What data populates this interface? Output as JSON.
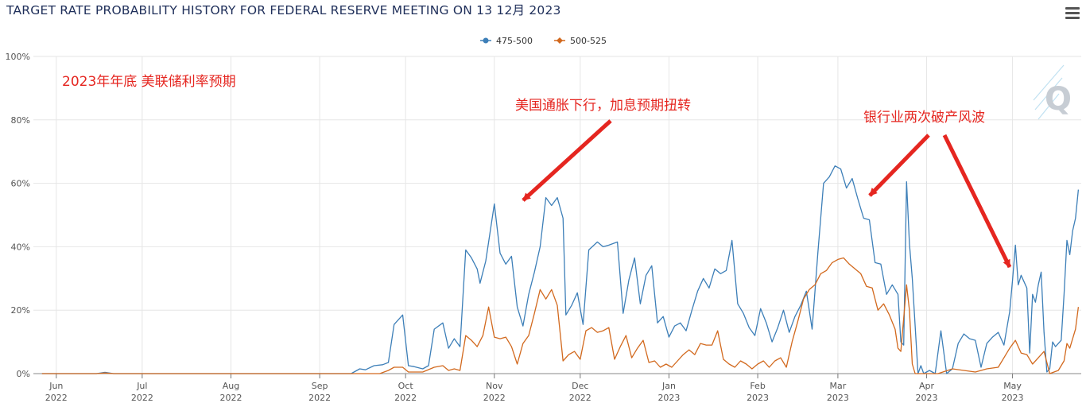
{
  "title": "TARGET RATE PROBABILITY HISTORY FOR FEDERAL RESERVE MEETING ON 13 12月 2023",
  "menu_icon": "hamburger-menu-icon",
  "watermark_icon": "quikstrike-q-logo-icon",
  "colors": {
    "series_475_500": "#3d7fb8",
    "series_500_525": "#d2691e",
    "annotation": "#e52620",
    "grid": "#e6e6e6"
  },
  "chart_data": {
    "type": "line",
    "title": "TARGET RATE PROBABILITY HISTORY FOR FEDERAL RESERVE MEETING ON 13 12月 2023",
    "xlabel": "",
    "ylabel": "",
    "ylim": [
      0,
      100
    ],
    "yticks": [
      "0%",
      "20%",
      "40%",
      "60%",
      "80%",
      "100%"
    ],
    "yticks_values": [
      0,
      20,
      40,
      60,
      80,
      100
    ],
    "xlim": [
      "2022-05-24",
      "2023-05-25"
    ],
    "xticks": [
      {
        "date": "2022-06-01",
        "month": "Jun",
        "year": "2022"
      },
      {
        "date": "2022-07-01",
        "month": "Jul",
        "year": "2022"
      },
      {
        "date": "2022-08-01",
        "month": "Aug",
        "year": "2022"
      },
      {
        "date": "2022-09-01",
        "month": "Sep",
        "year": "2022"
      },
      {
        "date": "2022-10-01",
        "month": "Oct",
        "year": "2022"
      },
      {
        "date": "2022-11-01",
        "month": "Nov",
        "year": "2022"
      },
      {
        "date": "2022-12-01",
        "month": "Dec",
        "year": "2022"
      },
      {
        "date": "2023-01-01",
        "month": "Jan",
        "year": "2023"
      },
      {
        "date": "2023-02-01",
        "month": "Feb",
        "year": "2023"
      },
      {
        "date": "2023-03-01",
        "month": "Mar",
        "year": "2023"
      },
      {
        "date": "2023-04-01",
        "month": "Apr",
        "year": "2023"
      },
      {
        "date": "2023-05-01",
        "month": "May",
        "year": "2023"
      }
    ],
    "grid": true,
    "legend": "top-center",
    "series": [
      {
        "name": "475-500",
        "color": "#3d7fb8",
        "points": [
          [
            "2022-05-27",
            0
          ],
          [
            "2022-06-15",
            0
          ],
          [
            "2022-06-18",
            0.4
          ],
          [
            "2022-06-21",
            0
          ],
          [
            "2022-09-12",
            0
          ],
          [
            "2022-09-15",
            1.5
          ],
          [
            "2022-09-17",
            1.2
          ],
          [
            "2022-09-20",
            2.5
          ],
          [
            "2022-09-23",
            2.8
          ],
          [
            "2022-09-25",
            3.5
          ],
          [
            "2022-09-27",
            15.5
          ],
          [
            "2022-09-30",
            18.5
          ],
          [
            "2022-10-02",
            2.5
          ],
          [
            "2022-10-04",
            2.2
          ],
          [
            "2022-10-07",
            1.5
          ],
          [
            "2022-10-09",
            2.5
          ],
          [
            "2022-10-11",
            14
          ],
          [
            "2022-10-14",
            16
          ],
          [
            "2022-10-16",
            8
          ],
          [
            "2022-10-18",
            11
          ],
          [
            "2022-10-20",
            8.5
          ],
          [
            "2022-10-22",
            39
          ],
          [
            "2022-10-24",
            36.5
          ],
          [
            "2022-10-26",
            33
          ],
          [
            "2022-10-27",
            28.5
          ],
          [
            "2022-10-29",
            35.5
          ],
          [
            "2022-11-01",
            53.5
          ],
          [
            "2022-11-03",
            38
          ],
          [
            "2022-11-05",
            34.5
          ],
          [
            "2022-11-07",
            37
          ],
          [
            "2022-11-09",
            21
          ],
          [
            "2022-11-11",
            15
          ],
          [
            "2022-11-13",
            25
          ],
          [
            "2022-11-15",
            32
          ],
          [
            "2022-11-17",
            40
          ],
          [
            "2022-11-19",
            55.5
          ],
          [
            "2022-11-21",
            53
          ],
          [
            "2022-11-23",
            55.5
          ],
          [
            "2022-11-25",
            49
          ],
          [
            "2022-11-26",
            18.5
          ],
          [
            "2022-11-28",
            21.5
          ],
          [
            "2022-11-30",
            25.5
          ],
          [
            "2022-12-02",
            15.5
          ],
          [
            "2022-12-04",
            39
          ],
          [
            "2022-12-07",
            41.5
          ],
          [
            "2022-12-09",
            40
          ],
          [
            "2022-12-11",
            40.5
          ],
          [
            "2022-12-14",
            41.5
          ],
          [
            "2022-12-16",
            19
          ],
          [
            "2022-12-18",
            29.5
          ],
          [
            "2022-12-20",
            36.5
          ],
          [
            "2022-12-22",
            22
          ],
          [
            "2022-12-24",
            31
          ],
          [
            "2022-12-26",
            34
          ],
          [
            "2022-12-28",
            16
          ],
          [
            "2022-12-30",
            18
          ],
          [
            "2023-01-01",
            11.5
          ],
          [
            "2023-01-03",
            15
          ],
          [
            "2023-01-05",
            16
          ],
          [
            "2023-01-07",
            13.5
          ],
          [
            "2023-01-09",
            20
          ],
          [
            "2023-01-11",
            26
          ],
          [
            "2023-01-13",
            30
          ],
          [
            "2023-01-15",
            27
          ],
          [
            "2023-01-17",
            33
          ],
          [
            "2023-01-19",
            31.5
          ],
          [
            "2023-01-21",
            32.5
          ],
          [
            "2023-01-23",
            42
          ],
          [
            "2023-01-25",
            22
          ],
          [
            "2023-01-27",
            19
          ],
          [
            "2023-01-29",
            14.5
          ],
          [
            "2023-01-31",
            12
          ],
          [
            "2023-02-02",
            20.5
          ],
          [
            "2023-02-04",
            16
          ],
          [
            "2023-02-06",
            10
          ],
          [
            "2023-02-08",
            14.5
          ],
          [
            "2023-02-10",
            20
          ],
          [
            "2023-02-12",
            13
          ],
          [
            "2023-02-14",
            18
          ],
          [
            "2023-02-16",
            21.5
          ],
          [
            "2023-02-18",
            26
          ],
          [
            "2023-02-20",
            14
          ],
          [
            "2023-02-22",
            38
          ],
          [
            "2023-02-24",
            60
          ],
          [
            "2023-02-26",
            62
          ],
          [
            "2023-02-28",
            65.5
          ],
          [
            "2023-03-02",
            64.5
          ],
          [
            "2023-03-04",
            58.5
          ],
          [
            "2023-03-06",
            61.5
          ],
          [
            "2023-03-08",
            55
          ],
          [
            "2023-03-10",
            49
          ],
          [
            "2023-03-12",
            48.5
          ],
          [
            "2023-03-14",
            35
          ],
          [
            "2023-03-16",
            34.5
          ],
          [
            "2023-03-18",
            25
          ],
          [
            "2023-03-20",
            28
          ],
          [
            "2023-03-22",
            25
          ],
          [
            "2023-03-23",
            10
          ],
          [
            "2023-03-24",
            9
          ],
          [
            "2023-03-25",
            60.5
          ],
          [
            "2023-03-26",
            41
          ],
          [
            "2023-03-27",
            30
          ],
          [
            "2023-03-28",
            15
          ],
          [
            "2023-03-29",
            0
          ],
          [
            "2023-03-30",
            2.5
          ],
          [
            "2023-03-31",
            0
          ],
          [
            "2023-04-02",
            1
          ],
          [
            "2023-04-04",
            0
          ],
          [
            "2023-04-06",
            13.5
          ],
          [
            "2023-04-08",
            0
          ],
          [
            "2023-04-10",
            1.5
          ],
          [
            "2023-04-12",
            9.5
          ],
          [
            "2023-04-14",
            12.5
          ],
          [
            "2023-04-16",
            11
          ],
          [
            "2023-04-18",
            10.5
          ],
          [
            "2023-04-20",
            2
          ],
          [
            "2023-04-22",
            9.5
          ],
          [
            "2023-04-24",
            11.5
          ],
          [
            "2023-04-26",
            13
          ],
          [
            "2023-04-28",
            9
          ],
          [
            "2023-04-30",
            19.5
          ],
          [
            "2023-05-01",
            29.5
          ],
          [
            "2023-05-02",
            40.5
          ],
          [
            "2023-05-03",
            28
          ],
          [
            "2023-05-04",
            31
          ],
          [
            "2023-05-05",
            29
          ],
          [
            "2023-05-06",
            27
          ],
          [
            "2023-05-07",
            6.5
          ],
          [
            "2023-05-08",
            25
          ],
          [
            "2023-05-09",
            22.5
          ],
          [
            "2023-05-10",
            28
          ],
          [
            "2023-05-11",
            32
          ],
          [
            "2023-05-12",
            13
          ],
          [
            "2023-05-13",
            0.5
          ],
          [
            "2023-05-14",
            1.5
          ],
          [
            "2023-05-15",
            10
          ],
          [
            "2023-05-16",
            8.5
          ],
          [
            "2023-05-17",
            9.5
          ],
          [
            "2023-05-18",
            10.5
          ],
          [
            "2023-05-19",
            25
          ],
          [
            "2023-05-20",
            42
          ],
          [
            "2023-05-21",
            37.5
          ],
          [
            "2023-05-22",
            45
          ],
          [
            "2023-05-23",
            49
          ],
          [
            "2023-05-24",
            58
          ]
        ]
      },
      {
        "name": "500-525",
        "color": "#d2691e",
        "points": [
          [
            "2022-05-27",
            0
          ],
          [
            "2022-06-15",
            0
          ],
          [
            "2022-06-18",
            0.2
          ],
          [
            "2022-06-21",
            0
          ],
          [
            "2022-09-22",
            0
          ],
          [
            "2022-09-25",
            1
          ],
          [
            "2022-09-27",
            2
          ],
          [
            "2022-09-30",
            2
          ],
          [
            "2022-10-02",
            0.5
          ],
          [
            "2022-10-07",
            0.5
          ],
          [
            "2022-10-11",
            2
          ],
          [
            "2022-10-14",
            2.5
          ],
          [
            "2022-10-16",
            1
          ],
          [
            "2022-10-18",
            1.5
          ],
          [
            "2022-10-20",
            1
          ],
          [
            "2022-10-22",
            12
          ],
          [
            "2022-10-24",
            10.5
          ],
          [
            "2022-10-26",
            8.5
          ],
          [
            "2022-10-28",
            12
          ],
          [
            "2022-10-30",
            21
          ],
          [
            "2022-11-01",
            11.5
          ],
          [
            "2022-11-03",
            11
          ],
          [
            "2022-11-05",
            11.5
          ],
          [
            "2022-11-07",
            8.5
          ],
          [
            "2022-11-09",
            3
          ],
          [
            "2022-11-11",
            9.5
          ],
          [
            "2022-11-13",
            12
          ],
          [
            "2022-11-15",
            19
          ],
          [
            "2022-11-17",
            26.5
          ],
          [
            "2022-11-19",
            23.5
          ],
          [
            "2022-11-21",
            26.5
          ],
          [
            "2022-11-23",
            21.5
          ],
          [
            "2022-11-25",
            4
          ],
          [
            "2022-11-27",
            6
          ],
          [
            "2022-11-29",
            7
          ],
          [
            "2022-12-01",
            4.5
          ],
          [
            "2022-12-03",
            13.5
          ],
          [
            "2022-12-05",
            14.5
          ],
          [
            "2022-12-07",
            13
          ],
          [
            "2022-12-09",
            13.5
          ],
          [
            "2022-12-11",
            14.5
          ],
          [
            "2022-12-13",
            4.5
          ],
          [
            "2022-12-15",
            8.5
          ],
          [
            "2022-12-17",
            12
          ],
          [
            "2022-12-19",
            5
          ],
          [
            "2022-12-21",
            8
          ],
          [
            "2022-12-23",
            10.5
          ],
          [
            "2022-12-25",
            3.5
          ],
          [
            "2022-12-27",
            4
          ],
          [
            "2022-12-29",
            2
          ],
          [
            "2022-12-31",
            3
          ],
          [
            "2023-01-02",
            2
          ],
          [
            "2023-01-04",
            4
          ],
          [
            "2023-01-06",
            6
          ],
          [
            "2023-01-08",
            7.5
          ],
          [
            "2023-01-10",
            6
          ],
          [
            "2023-01-12",
            9.5
          ],
          [
            "2023-01-14",
            9
          ],
          [
            "2023-01-16",
            9
          ],
          [
            "2023-01-18",
            13.5
          ],
          [
            "2023-01-20",
            4.5
          ],
          [
            "2023-01-22",
            3
          ],
          [
            "2023-01-24",
            2
          ],
          [
            "2023-01-26",
            4
          ],
          [
            "2023-01-28",
            3
          ],
          [
            "2023-01-30",
            1.5
          ],
          [
            "2023-02-01",
            3
          ],
          [
            "2023-02-03",
            4
          ],
          [
            "2023-02-05",
            2
          ],
          [
            "2023-02-07",
            4
          ],
          [
            "2023-02-09",
            5
          ],
          [
            "2023-02-11",
            2
          ],
          [
            "2023-02-13",
            10
          ],
          [
            "2023-02-15",
            16.5
          ],
          [
            "2023-02-17",
            23.5
          ],
          [
            "2023-02-19",
            26.5
          ],
          [
            "2023-02-21",
            28
          ],
          [
            "2023-02-23",
            31.5
          ],
          [
            "2023-02-25",
            32.5
          ],
          [
            "2023-02-27",
            35
          ],
          [
            "2023-03-01",
            36
          ],
          [
            "2023-03-03",
            36.5
          ],
          [
            "2023-03-05",
            34.5
          ],
          [
            "2023-03-07",
            33
          ],
          [
            "2023-03-09",
            31.5
          ],
          [
            "2023-03-11",
            27.5
          ],
          [
            "2023-03-13",
            27
          ],
          [
            "2023-03-15",
            20
          ],
          [
            "2023-03-17",
            22
          ],
          [
            "2023-03-19",
            18.5
          ],
          [
            "2023-03-21",
            14
          ],
          [
            "2023-03-22",
            8
          ],
          [
            "2023-03-23",
            7
          ],
          [
            "2023-03-25",
            28
          ],
          [
            "2023-03-26",
            20
          ],
          [
            "2023-03-27",
            3
          ],
          [
            "2023-03-28",
            0
          ],
          [
            "2023-04-05",
            0
          ],
          [
            "2023-04-10",
            1.5
          ],
          [
            "2023-04-14",
            1
          ],
          [
            "2023-04-18",
            0.5
          ],
          [
            "2023-04-22",
            1.5
          ],
          [
            "2023-04-26",
            2
          ],
          [
            "2023-04-28",
            5
          ],
          [
            "2023-04-30",
            8
          ],
          [
            "2023-05-02",
            10.5
          ],
          [
            "2023-05-04",
            6.5
          ],
          [
            "2023-05-06",
            6
          ],
          [
            "2023-05-08",
            3
          ],
          [
            "2023-05-10",
            5
          ],
          [
            "2023-05-12",
            7
          ],
          [
            "2023-05-14",
            0
          ],
          [
            "2023-05-17",
            1
          ],
          [
            "2023-05-19",
            4
          ],
          [
            "2023-05-20",
            9.5
          ],
          [
            "2023-05-21",
            8
          ],
          [
            "2023-05-22",
            11
          ],
          [
            "2023-05-23",
            14
          ],
          [
            "2023-05-24",
            21
          ]
        ]
      }
    ],
    "annotations": [
      {
        "text": "2023年年底 美联储利率预期"
      },
      {
        "text": "美国通胀下行，加息预期扭转"
      },
      {
        "text": "银行业两次破产风波"
      }
    ]
  }
}
